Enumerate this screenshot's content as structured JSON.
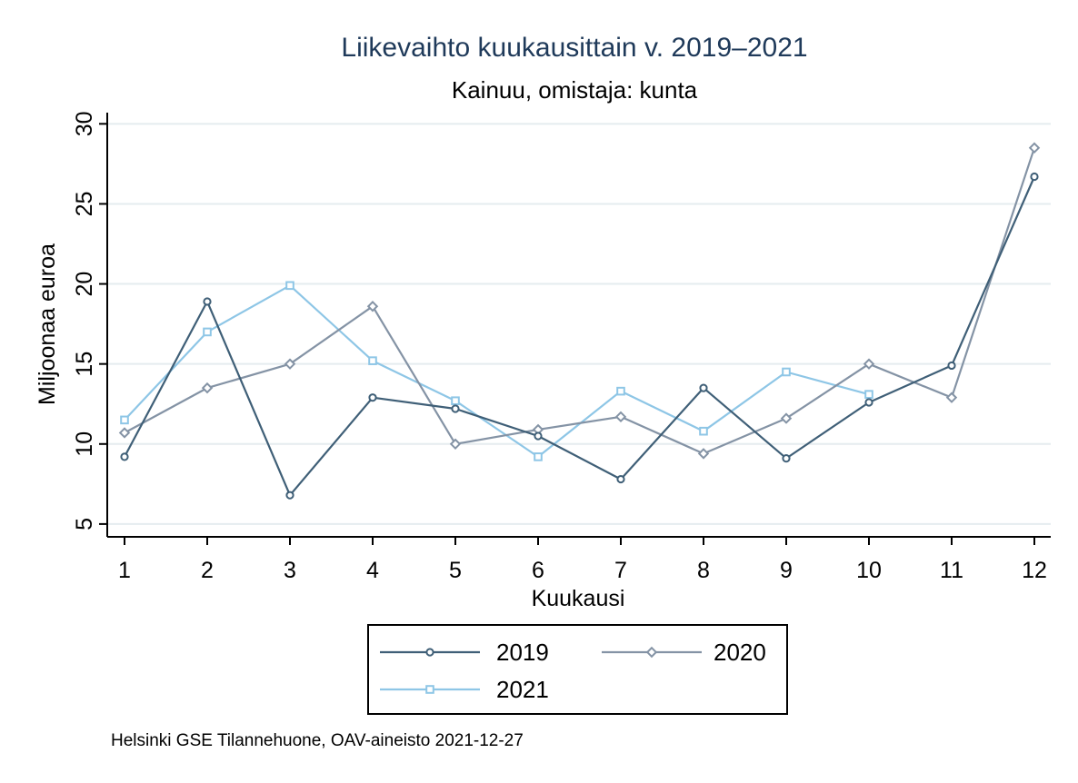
{
  "chart_data": {
    "type": "line",
    "title": "Liikevaihto kuukausittain v. 2019–2021",
    "subtitle": "Kainuu, omistaja: kunta",
    "xlabel": "Kuukausi",
    "ylabel": "Miljoonaa euroa",
    "x": [
      1,
      2,
      3,
      4,
      5,
      6,
      7,
      8,
      9,
      10,
      11,
      12
    ],
    "x_ticks": [
      "1",
      "2",
      "3",
      "4",
      "5",
      "6",
      "7",
      "8",
      "9",
      "10",
      "11",
      "12"
    ],
    "xlim": [
      1,
      12
    ],
    "ylim": [
      4.2,
      30.7
    ],
    "y_ticks": [
      "5",
      "10",
      "15",
      "20",
      "25",
      "30"
    ],
    "grid": true,
    "legend_position": "bottom",
    "series": [
      {
        "name": "2019",
        "color": "#3f5f77",
        "marker": "circle",
        "values": [
          9.2,
          18.9,
          6.8,
          12.9,
          12.2,
          10.5,
          7.8,
          13.5,
          9.1,
          12.6,
          14.9,
          26.7
        ]
      },
      {
        "name": "2020",
        "color": "#8493a5",
        "marker": "diamond",
        "values": [
          10.7,
          13.5,
          15.0,
          18.6,
          10.0,
          10.9,
          11.7,
          9.4,
          11.6,
          15.0,
          12.9,
          28.5
        ]
      },
      {
        "name": "2021",
        "color": "#8ec6e6",
        "marker": "square",
        "values": [
          11.5,
          17.0,
          19.9,
          15.2,
          12.7,
          9.2,
          13.3,
          10.8,
          14.5,
          13.1,
          null,
          null
        ]
      }
    ],
    "note": "Helsinki GSE Tilannehuone, OAV-aineisto 2021-12-27"
  }
}
